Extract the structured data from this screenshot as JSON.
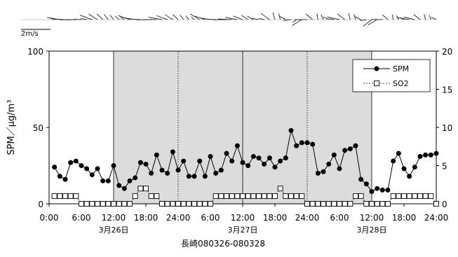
{
  "chart_data": {
    "type": "line",
    "wind_scale_label": "2m/s",
    "left_axis": {
      "label": "SPM／μg/m³",
      "range": [
        0,
        100
      ],
      "ticks": [
        "0",
        "50",
        "100"
      ]
    },
    "right_axis": {
      "range": [
        0,
        20
      ],
      "ticks": [
        "0",
        "5",
        "10",
        "15",
        "20"
      ]
    },
    "x_range_hours": [
      0,
      72
    ],
    "x_tick_labels": [
      "0:00",
      "6:00",
      "12:00",
      "18:00",
      "24:00",
      "6:00",
      "12:00",
      "18:00",
      "24:00",
      "6:00",
      "12:00",
      "18:00",
      "24:00"
    ],
    "date_labels": [
      {
        "hour": 12,
        "text": "3月26日"
      },
      {
        "hour": 36,
        "text": "3月27日"
      },
      {
        "hour": 60,
        "text": "3月28日"
      }
    ],
    "xlabel": "長崎080326-080328",
    "shaded_periods_hours": [
      [
        12,
        60
      ]
    ],
    "vertical_lines": [
      {
        "hour": 24,
        "style": "dotted"
      },
      {
        "hour": 36,
        "style": "solid"
      },
      {
        "hour": 48,
        "style": "dotted"
      }
    ],
    "legend": {
      "position": "top-right",
      "entries": [
        "SPM",
        "SO2"
      ]
    },
    "series": [
      {
        "name": "SPM",
        "axis": "left",
        "marker": "filled-circle",
        "line": "solid",
        "x": [
          1,
          2,
          3,
          4,
          5,
          6,
          7,
          8,
          9,
          10,
          11,
          12,
          13,
          14,
          15,
          16,
          17,
          18,
          19,
          20,
          21,
          22,
          23,
          24,
          25,
          26,
          27,
          28,
          29,
          30,
          31,
          32,
          33,
          34,
          35,
          36,
          37,
          38,
          39,
          40,
          41,
          42,
          43,
          44,
          45,
          46,
          47,
          48,
          49,
          50,
          51,
          52,
          53,
          54,
          55,
          56,
          57,
          58,
          59,
          60,
          61,
          62,
          63,
          64,
          65,
          66,
          67,
          68,
          69,
          70,
          71,
          72
        ],
        "values": [
          24,
          18,
          16,
          27,
          28,
          25,
          23,
          19,
          23,
          15,
          15,
          25,
          12,
          10,
          15,
          17,
          27,
          26,
          20,
          32,
          22,
          20,
          34,
          22,
          28,
          18,
          18,
          28,
          18,
          31,
          20,
          22,
          33,
          28,
          38,
          27,
          25,
          31,
          30,
          26,
          30,
          24,
          28,
          30,
          48,
          38,
          40,
          40,
          39,
          20,
          21,
          26,
          32,
          23,
          35,
          36,
          38,
          16,
          13,
          8,
          10,
          9,
          9,
          28,
          33,
          23,
          18,
          24,
          31,
          32,
          32,
          33
        ]
      },
      {
        "name": "SO2",
        "axis": "right",
        "marker": "open-square",
        "line": "dotted",
        "x": [
          1,
          2,
          3,
          4,
          5,
          6,
          7,
          8,
          9,
          10,
          11,
          12,
          13,
          14,
          15,
          16,
          17,
          18,
          19,
          20,
          21,
          22,
          23,
          24,
          25,
          26,
          27,
          28,
          29,
          30,
          31,
          32,
          33,
          34,
          35,
          36,
          37,
          38,
          39,
          40,
          41,
          42,
          43,
          44,
          45,
          46,
          47,
          48,
          49,
          50,
          51,
          52,
          53,
          54,
          55,
          56,
          57,
          58,
          59,
          60,
          61,
          62,
          63,
          64,
          65,
          66,
          67,
          68,
          69,
          70,
          71,
          72
        ],
        "values": [
          1,
          1,
          1,
          1,
          1,
          0,
          0,
          0,
          0,
          0,
          0,
          0,
          0,
          0,
          0,
          1,
          2,
          2,
          1,
          1,
          0,
          0,
          0,
          0,
          0,
          0,
          0,
          0,
          0,
          0,
          1,
          1,
          1,
          1,
          1,
          1,
          1,
          1,
          1,
          1,
          1,
          1,
          2,
          1,
          1,
          1,
          1,
          0,
          0,
          0,
          0,
          0,
          0,
          0,
          0,
          0,
          1,
          1,
          0,
          0,
          0,
          0,
          0,
          1,
          1,
          1,
          1,
          1,
          1,
          1,
          1,
          0
        ]
      }
    ]
  }
}
